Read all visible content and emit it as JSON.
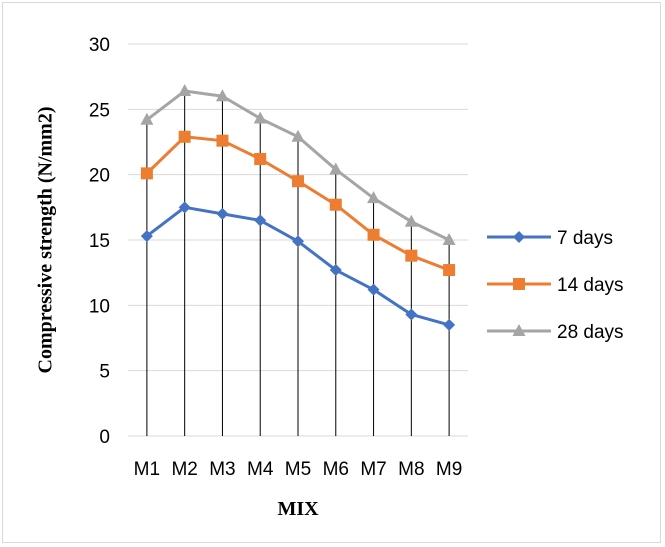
{
  "chart_data": {
    "type": "line",
    "categories": [
      "M1",
      "M2",
      "M3",
      "M4",
      "M5",
      "M6",
      "M7",
      "M8",
      "M9"
    ],
    "series": [
      {
        "name": "7 days",
        "color": "#4472C4",
        "marker": "diamond",
        "values": [
          15.3,
          17.5,
          17.0,
          16.5,
          14.9,
          12.7,
          11.2,
          9.3,
          8.5
        ]
      },
      {
        "name": "14 days",
        "color": "#ED7D31",
        "marker": "square",
        "values": [
          20.1,
          22.9,
          22.6,
          21.2,
          19.5,
          17.7,
          15.4,
          13.8,
          12.7
        ]
      },
      {
        "name": "28 days",
        "color": "#A5A5A5",
        "marker": "triangle",
        "values": [
          24.2,
          26.4,
          26.0,
          24.3,
          22.9,
          20.4,
          18.2,
          16.4,
          15.0
        ]
      }
    ],
    "xlabel": "MIX",
    "ylabel": "Compressive strength (N/mm2)",
    "ylim": [
      0,
      30
    ],
    "yticks": [
      0,
      5,
      10,
      15,
      20,
      25,
      30
    ],
    "grid": {
      "horizontal": true,
      "vertical_drop_lines": true
    },
    "legend": "right"
  }
}
